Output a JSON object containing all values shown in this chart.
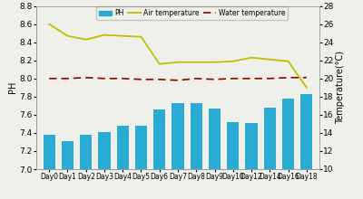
{
  "categories": [
    "Day0",
    "Day1",
    "Day2",
    "Day3",
    "Day4",
    "Day5",
    "Day6",
    "Day7",
    "Day8",
    "Day9",
    "Day10",
    "Day12",
    "Day14",
    "Day16",
    "Day18"
  ],
  "ph_values": [
    7.38,
    7.31,
    7.38,
    7.41,
    7.48,
    7.48,
    7.66,
    7.73,
    7.73,
    7.67,
    7.52,
    7.51,
    7.68,
    7.78,
    7.83
  ],
  "air_temp": [
    26.0,
    24.7,
    24.3,
    24.8,
    24.7,
    24.6,
    21.6,
    21.8,
    21.8,
    21.8,
    21.9,
    22.3,
    22.1,
    21.9,
    19.0
  ],
  "water_temp": [
    20.0,
    20.0,
    20.1,
    20.0,
    20.0,
    19.9,
    19.9,
    19.8,
    20.0,
    19.9,
    20.0,
    20.0,
    20.0,
    20.1,
    20.1
  ],
  "bar_color": "#29ABD4",
  "air_temp_color": "#BFBF00",
  "water_temp_color": "#8B0000",
  "ylabel_left": "PH",
  "ylabel_right": "Temperature(°C)",
  "ylim_left": [
    7.0,
    8.8
  ],
  "ylim_right": [
    10,
    28
  ],
  "yticks_left": [
    7.0,
    7.2,
    7.4,
    7.6,
    7.8,
    8.0,
    8.2,
    8.4,
    8.6,
    8.8
  ],
  "yticks_right": [
    10,
    12,
    14,
    16,
    18,
    20,
    22,
    24,
    26,
    28
  ],
  "legend_labels": [
    "PH",
    "Air temperature",
    "Water temperature"
  ],
  "background_color": "#f0f0eb"
}
